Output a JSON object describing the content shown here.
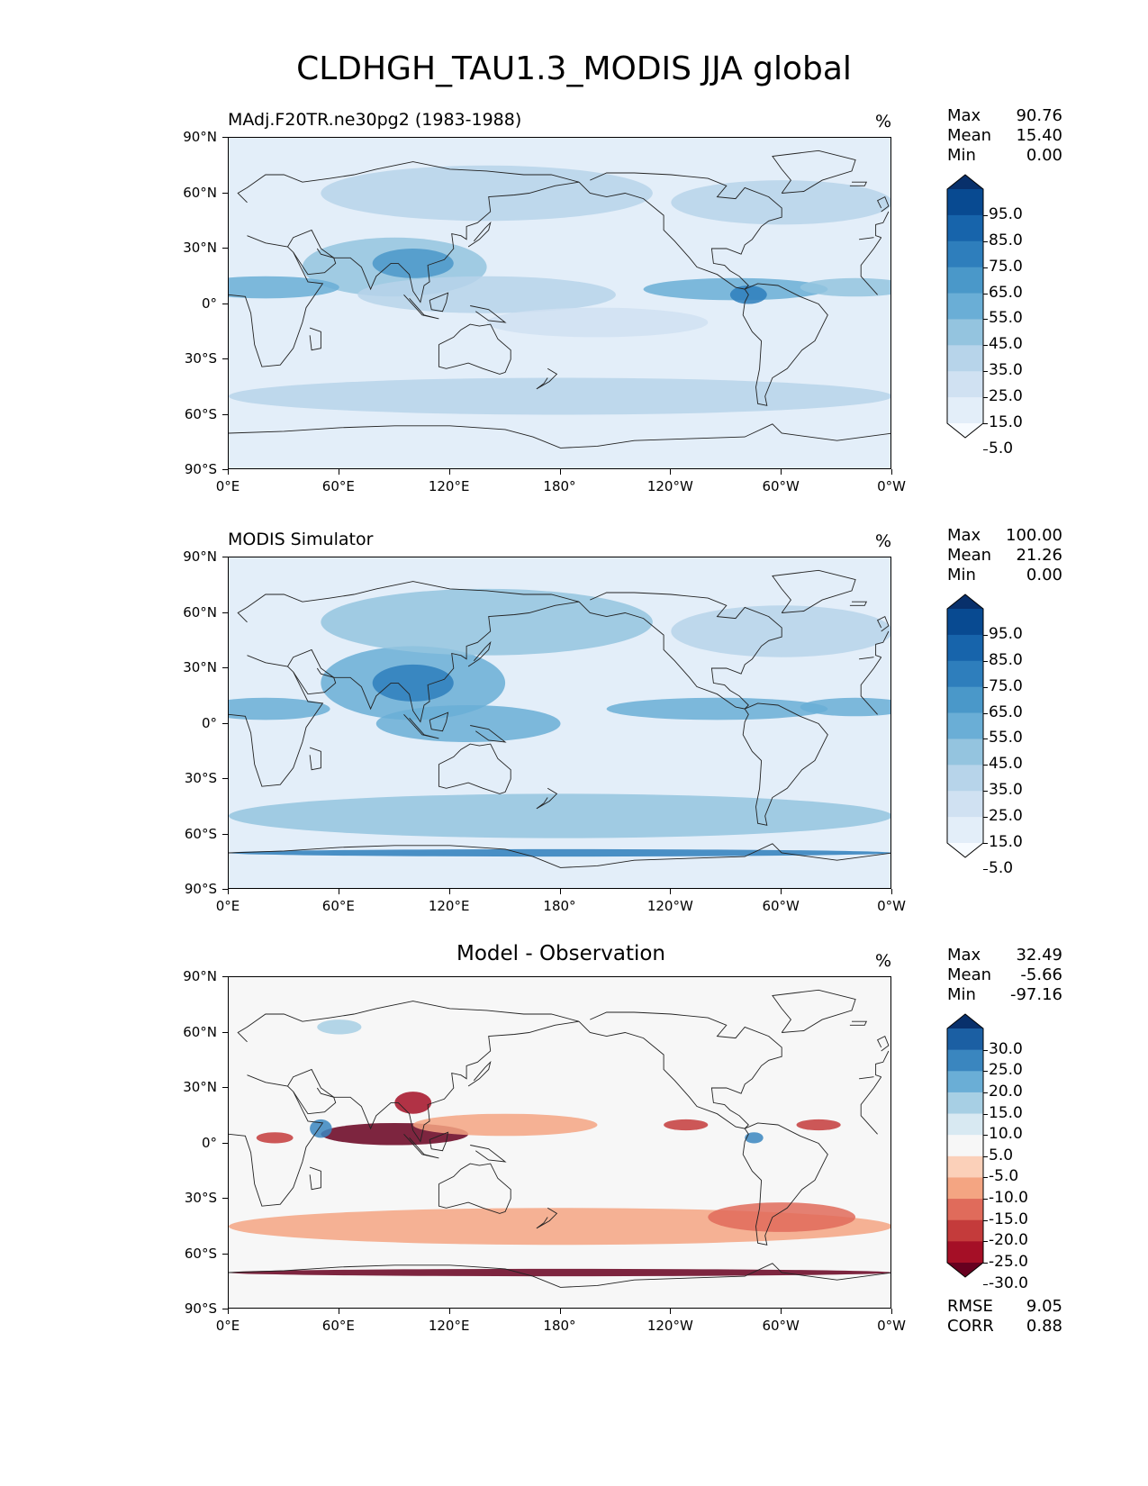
{
  "figure": {
    "title": "CLDHGH_TAU1.3_MODIS JJA global"
  },
  "axes": {
    "y_ticks": [
      "90°N",
      "60°N",
      "30°N",
      "0°",
      "30°S",
      "60°S",
      "90°S"
    ],
    "x_ticks": [
      "0°E",
      "60°E",
      "120°E",
      "180°",
      "120°W",
      "60°W",
      "0°W"
    ]
  },
  "panels": [
    {
      "title": "MAdj.F20TR.ne30pg2 (1983-1988)",
      "units": "%",
      "stats": [
        {
          "label": "Max",
          "value": "90.76"
        },
        {
          "label": "Mean",
          "value": "15.40"
        },
        {
          "label": "Min",
          "value": "0.00"
        }
      ],
      "colorbar": {
        "labels": [
          "95.0",
          "85.0",
          "75.0",
          "65.0",
          "55.0",
          "45.0",
          "35.0",
          "25.0",
          "15.0",
          "5.0"
        ],
        "colors": [
          "#f7fbff",
          "#e3eef9",
          "#d0e1f2",
          "#b7d4ea",
          "#94c4df",
          "#6aaed6",
          "#4a98c9",
          "#2e7ebc",
          "#1764ab",
          "#084a91",
          "#08306b"
        ]
      }
    },
    {
      "title": "MODIS Simulator",
      "units": "%",
      "stats": [
        {
          "label": "Max",
          "value": "100.00"
        },
        {
          "label": "Mean",
          "value": "21.26"
        },
        {
          "label": "Min",
          "value": "0.00"
        }
      ],
      "colorbar": {
        "labels": [
          "95.0",
          "85.0",
          "75.0",
          "65.0",
          "55.0",
          "45.0",
          "35.0",
          "25.0",
          "15.0",
          "5.0"
        ],
        "colors": [
          "#f7fbff",
          "#e3eef9",
          "#d0e1f2",
          "#b7d4ea",
          "#94c4df",
          "#6aaed6",
          "#4a98c9",
          "#2e7ebc",
          "#1764ab",
          "#084a91",
          "#08306b"
        ]
      }
    },
    {
      "title": "Model - Observation",
      "units": "%",
      "stats": [
        {
          "label": "Max",
          "value": "32.49"
        },
        {
          "label": "Mean",
          "value": "-5.66"
        },
        {
          "label": "Min",
          "value": "-97.16"
        }
      ],
      "extra_stats": [
        {
          "label": "RMSE",
          "value": "9.05"
        },
        {
          "label": "CORR",
          "value": "0.88"
        }
      ],
      "colorbar": {
        "labels": [
          "30.0",
          "25.0",
          "20.0",
          "15.0",
          "10.0",
          "5.0",
          "-5.0",
          "-10.0",
          "-15.0",
          "-20.0",
          "-25.0",
          "-30.0"
        ],
        "colors": [
          "#67001f",
          "#a50f26",
          "#c43b3b",
          "#e06b5b",
          "#f4a582",
          "#fbd0b9",
          "#f7f7f7",
          "#d8e9f2",
          "#a7cfe4",
          "#6aaed6",
          "#3a86bf",
          "#1b5fa3",
          "#08306b"
        ]
      }
    }
  ]
}
